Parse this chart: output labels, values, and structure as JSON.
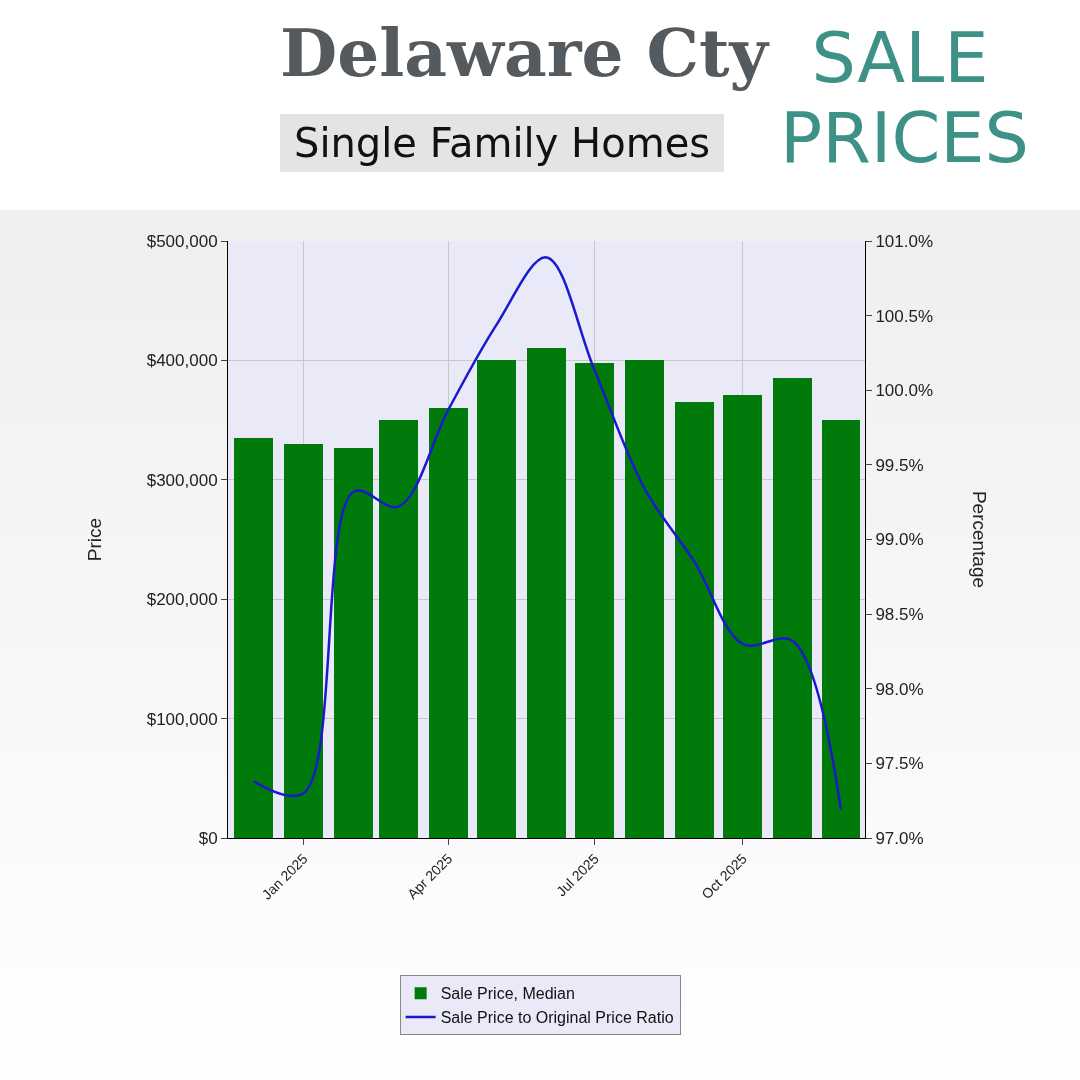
{
  "chart_data": {
    "type": "bar",
    "title": "Delaware Cty",
    "subtitle": "Single Family Homes",
    "annotations": [
      "SALE PRICES"
    ],
    "x": [
      "2024-12",
      "2025-01",
      "2025-02",
      "2025-03",
      "2025-04",
      "2025-05",
      "2025-06",
      "2025-07",
      "2025-08",
      "2025-09",
      "2025-10",
      "2025-11",
      "2025-12"
    ],
    "series": [
      {
        "name": "Sale Price, Median",
        "color": "#007a0a",
        "values": [
          335000,
          330000,
          327000,
          350000,
          360000,
          400000,
          410000,
          398000,
          400000,
          365000,
          371000,
          385000,
          350000
        ]
      },
      {
        "name": "Sale Price to Original Price Ratio",
        "type": "line",
        "axis": "y2",
        "color": "#1a1acc",
        "values": [
          97.38,
          97.3,
          99.32,
          99.22,
          99.87,
          100.44,
          100.89,
          100.13,
          99.34,
          98.85,
          98.3,
          98.32,
          97.19
        ]
      }
    ],
    "xlim": [
      "2024-11-15",
      "2025-12-16"
    ],
    "xticks": [
      {
        "value": "2025-01",
        "label": "Jan 2025"
      },
      {
        "value": "2025-04",
        "label": "Apr 2025"
      },
      {
        "value": "2025-07",
        "label": "Jul 2025"
      },
      {
        "value": "2025-10",
        "label": "Oct 2025"
      }
    ],
    "ylabel": "Price",
    "y2label": "Percentage",
    "ylim": [
      0,
      500000
    ],
    "yticks": [
      {
        "value": 0,
        "label": "$0"
      },
      {
        "value": 100000,
        "label": "$100,000"
      },
      {
        "value": 200000,
        "label": "$200,000"
      },
      {
        "value": 300000,
        "label": "$300,000"
      },
      {
        "value": 400000,
        "label": "$400,000"
      },
      {
        "value": 500000,
        "label": "$500,000"
      }
    ],
    "y2lim": [
      97,
      101
    ],
    "y2ticks": [
      {
        "value": 97,
        "label": "97.0%"
      },
      {
        "value": 97.5,
        "label": "97.5%"
      },
      {
        "value": 98,
        "label": "98.0%"
      },
      {
        "value": 98.5,
        "label": "98.5%"
      },
      {
        "value": 99,
        "label": "99.0%"
      },
      {
        "value": 99.5,
        "label": "99.5%"
      },
      {
        "value": 100,
        "label": "100.0%"
      },
      {
        "value": 100.5,
        "label": "100.5%"
      },
      {
        "value": 101,
        "label": "101.0%"
      }
    ],
    "grid": true,
    "legend": "bottom",
    "marker": "none",
    "line_style": "solid"
  }
}
